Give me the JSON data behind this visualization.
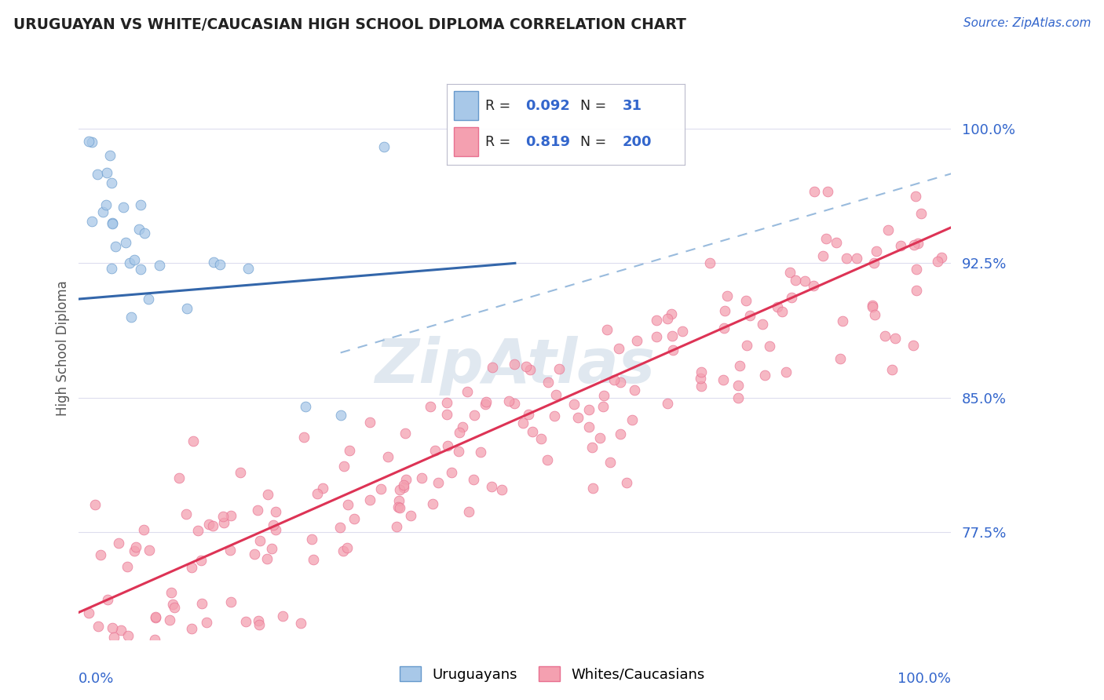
{
  "title": "URUGUAYAN VS WHITE/CAUCASIAN HIGH SCHOOL DIPLOMA CORRELATION CHART",
  "source_text": "Source: ZipAtlas.com",
  "ylabel": "High School Diploma",
  "ytick_labels": [
    "77.5%",
    "85.0%",
    "92.5%",
    "100.0%"
  ],
  "ytick_values": [
    0.775,
    0.85,
    0.925,
    1.0
  ],
  "xmin": 0.0,
  "xmax": 1.0,
  "ymin": 0.715,
  "ymax": 1.04,
  "legend_R1": "0.092",
  "legend_N1": "31",
  "legend_R2": "0.819",
  "legend_N2": "200",
  "blue_dot_fill": "#A8C8E8",
  "blue_dot_edge": "#6699CC",
  "pink_dot_fill": "#F4A0B0",
  "pink_dot_edge": "#E87090",
  "trend_blue_color": "#3366AA",
  "trend_pink_color": "#DD3355",
  "dashed_line_color": "#99BBDD",
  "legend_text_color": "#3366CC",
  "axis_label_color": "#3366CC",
  "watermark_color": "#E0E8F0",
  "background_color": "#FFFFFF",
  "grid_color": "#DDDDEE",
  "title_color": "#222222",
  "ylabel_color": "#555555",
  "blue_trend_x": [
    0.0,
    0.5
  ],
  "blue_trend_y": [
    0.905,
    0.925
  ],
  "pink_trend_x": [
    0.0,
    1.0
  ],
  "pink_trend_y": [
    0.73,
    0.945
  ],
  "dash_trend_x": [
    0.3,
    1.0
  ],
  "dash_trend_y": [
    0.875,
    0.975
  ]
}
